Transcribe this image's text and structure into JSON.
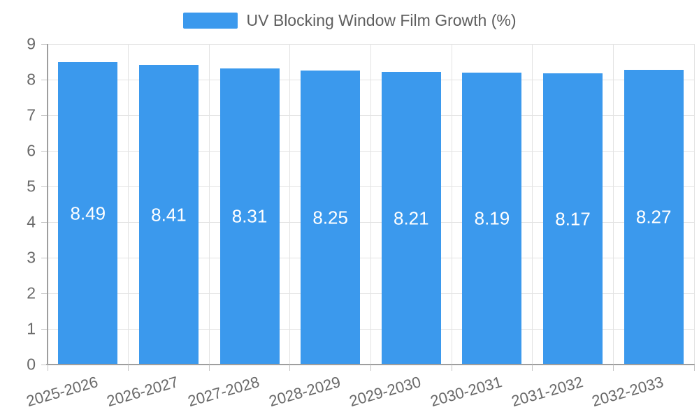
{
  "colors": {
    "bar": "#3B99ED",
    "grid": "#E3E3E3",
    "axis": "#9E9E9E",
    "tick": "#C4C4C4",
    "text": "#696969",
    "title": "#5F5F5F",
    "value": "#FFFFFF",
    "background": "#FFFFFF"
  },
  "chart_data": {
    "type": "bar",
    "title": "UV Blocking Window Film Growth (%)",
    "categories": [
      "2025-2026",
      "2026-2027",
      "2027-2028",
      "2028-2029",
      "2029-2030",
      "2030-2031",
      "2031-2032",
      "2032-2033"
    ],
    "values": [
      8.49,
      8.41,
      8.31,
      8.25,
      8.21,
      8.19,
      8.17,
      8.27
    ],
    "value_labels": [
      "8.49",
      "8.41",
      "8.31",
      "8.25",
      "8.21",
      "8.19",
      "8.17",
      "8.27"
    ],
    "xlabel": "",
    "ylabel": "",
    "ylim": [
      0,
      9
    ],
    "yticks": [
      0,
      1,
      2,
      3,
      4,
      5,
      6,
      7,
      8,
      9
    ],
    "grid": true,
    "legend_position": "top-center",
    "bar_label_position": "inside-center",
    "xtick_rotation_deg": -16
  }
}
